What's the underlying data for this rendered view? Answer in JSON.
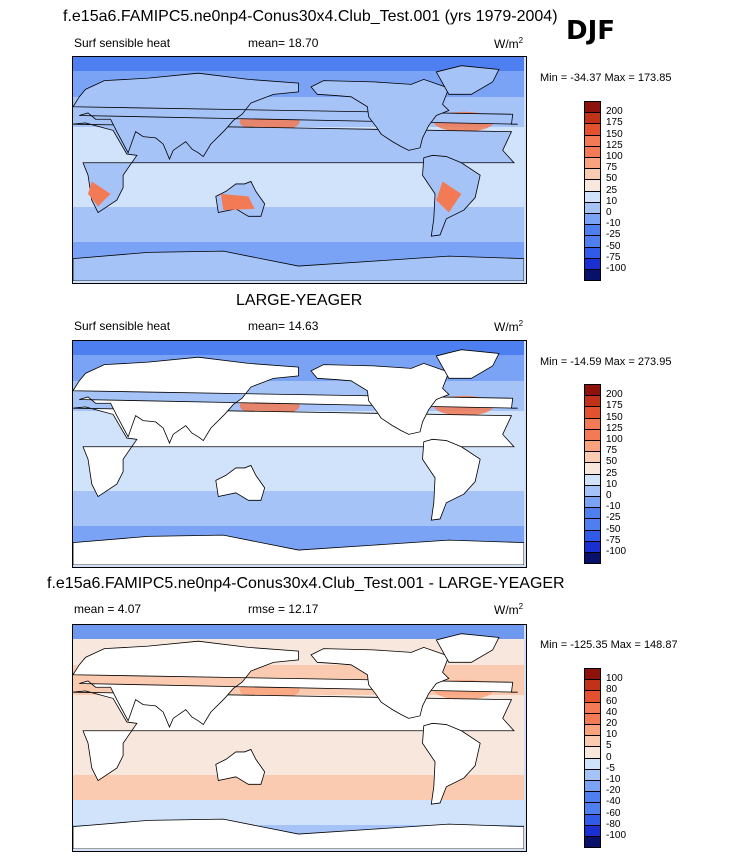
{
  "season": "DJF",
  "colors": {
    "palette": [
      "#08106a",
      "#1a2fcf",
      "#2f5be8",
      "#4d7ff0",
      "#7aa3f5",
      "#a6c3f8",
      "#d1e2fb",
      "#f8e7dc",
      "#fbcbb1",
      "#f9a37e",
      "#f27a54",
      "#e2522f",
      "#c23218",
      "#8e120c"
    ],
    "land": "#ffffff",
    "coast": "#000000"
  },
  "panels": [
    {
      "title": "f.e15a6.FAMIPC5.ne0np4-Conus30x4.Club_Test.001 (yrs 1979-2004)",
      "left_label": "Surf sensible heat",
      "center_label": "mean=  18.70",
      "units": "W/m",
      "units_sup": "2",
      "minmax": "Min = -34.37 Max = 173.85",
      "levels": [
        "200",
        "175",
        "150",
        "125",
        "100",
        "75",
        "50",
        "25",
        "10",
        "0",
        "-10",
        "-25",
        "-50",
        "-75",
        "-100"
      ]
    },
    {
      "title": "LARGE-YEAGER",
      "left_label": "Surf sensible heat",
      "center_label": "mean=  14.63",
      "units": "W/m",
      "units_sup": "2",
      "minmax": "Min = -14.59 Max = 273.95",
      "levels": [
        "200",
        "175",
        "150",
        "125",
        "100",
        "75",
        "50",
        "25",
        "10",
        "0",
        "-10",
        "-25",
        "-50",
        "-75",
        "-100"
      ]
    },
    {
      "title": "f.e15a6.FAMIPC5.ne0np4-Conus30x4.Club_Test.001 - LARGE-YEAGER",
      "left_label": "mean =   4.07",
      "center_label": "rmse =  12.17",
      "units": "W/m",
      "units_sup": "2",
      "minmax": "Min = -125.35 Max = 148.87",
      "levels": [
        "100",
        "80",
        "60",
        "40",
        "20",
        "10",
        "5",
        "0",
        "-5",
        "-10",
        "-20",
        "-40",
        "-60",
        "-80",
        "-100"
      ]
    }
  ],
  "chart_data": [
    {
      "type": "heatmap",
      "title": "f.e15a6.FAMIPC5.ne0np4-Conus30x4.Club_Test.001 (yrs 1979-2004)",
      "variable": "Surf sensible heat",
      "units": "W/m2",
      "season": "DJF",
      "mean": 18.7,
      "min": -34.37,
      "max": 173.85,
      "contour_levels": [
        -100,
        -75,
        -50,
        -25,
        -10,
        0,
        10,
        25,
        50,
        75,
        100,
        125,
        150,
        175,
        200
      ]
    },
    {
      "type": "heatmap",
      "title": "LARGE-YEAGER",
      "variable": "Surf sensible heat",
      "units": "W/m2",
      "season": "DJF",
      "mean": 14.63,
      "min": -14.59,
      "max": 273.95,
      "contour_levels": [
        -100,
        -75,
        -50,
        -25,
        -10,
        0,
        10,
        25,
        50,
        75,
        100,
        125,
        150,
        175,
        200
      ]
    },
    {
      "type": "heatmap",
      "title": "f.e15a6.FAMIPC5.ne0np4-Conus30x4.Club_Test.001 - LARGE-YEAGER",
      "units": "W/m2",
      "season": "DJF",
      "mean": 4.07,
      "rmse": 12.17,
      "min": -125.35,
      "max": 148.87,
      "contour_levels": [
        -100,
        -80,
        -60,
        -40,
        -20,
        -10,
        -5,
        0,
        5,
        10,
        20,
        40,
        60,
        80,
        100
      ]
    }
  ]
}
